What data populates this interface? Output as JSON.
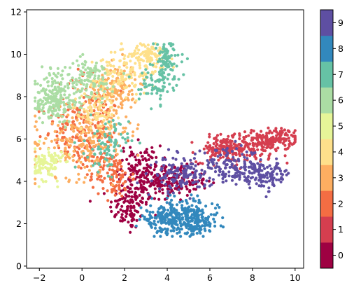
{
  "chart_data": {
    "type": "scatter",
    "title": "",
    "xlabel": "",
    "ylabel": "",
    "xlim": [
      -2.6,
      10.4
    ],
    "ylim": [
      -0.1,
      12.1
    ],
    "x_ticks": [
      -2,
      0,
      2,
      4,
      6,
      8,
      10
    ],
    "y_ticks": [
      0,
      2,
      4,
      6,
      8,
      10,
      12
    ],
    "grid": false,
    "legend": "none",
    "colormap": "Spectral (discrete, 10 classes)",
    "colorbar": {
      "placement": "right",
      "labels": [
        "0",
        "1",
        "2",
        "3",
        "4",
        "5",
        "6",
        "7",
        "8",
        "9"
      ],
      "colors": [
        "#9e0142",
        "#d53e4f",
        "#f46d43",
        "#fdae61",
        "#fee08b",
        "#e6f598",
        "#abdda4",
        "#66c2a5",
        "#3288bd",
        "#5e4fa2"
      ]
    },
    "clusters": [
      {
        "label": "0",
        "color": "#9e0142",
        "n": 420,
        "blobs": [
          [
            2.2,
            2.8,
            0.45,
            0.55
          ],
          [
            3.5,
            3.9,
            0.8,
            0.55
          ],
          [
            4.5,
            4.0,
            0.7,
            0.35
          ],
          [
            2.7,
            4.7,
            0.5,
            0.5
          ]
        ]
      },
      {
        "label": "1",
        "color": "#d53e4f",
        "n": 380,
        "blobs": [
          [
            8.0,
            5.6,
            0.9,
            0.35
          ],
          [
            9.0,
            6.0,
            0.5,
            0.25
          ],
          [
            6.6,
            5.5,
            0.6,
            0.3
          ]
        ]
      },
      {
        "label": "2",
        "color": "#f46d43",
        "n": 360,
        "blobs": [
          [
            0.5,
            7.7,
            0.6,
            0.9
          ],
          [
            1.5,
            4.2,
            0.4,
            0.5
          ],
          [
            -0.6,
            6.5,
            0.6,
            0.7
          ],
          [
            0.8,
            5.5,
            0.6,
            0.6
          ]
        ]
      },
      {
        "label": "3",
        "color": "#fdae61",
        "n": 360,
        "blobs": [
          [
            -0.5,
            5.8,
            0.9,
            0.8
          ],
          [
            0.8,
            6.5,
            0.8,
            1.0
          ],
          [
            1.6,
            8.4,
            0.5,
            0.6
          ]
        ]
      },
      {
        "label": "4",
        "color": "#fee08b",
        "n": 320,
        "blobs": [
          [
            1.5,
            8.8,
            0.7,
            0.6
          ],
          [
            2.5,
            9.4,
            0.7,
            0.5
          ],
          [
            3.2,
            10.0,
            0.4,
            0.25
          ],
          [
            0.6,
            7.3,
            0.5,
            0.5
          ]
        ]
      },
      {
        "label": "5",
        "color": "#e6f598",
        "n": 110,
        "blobs": [
          [
            -1.6,
            4.8,
            0.35,
            0.4
          ]
        ]
      },
      {
        "label": "6",
        "color": "#abdda4",
        "n": 320,
        "blobs": [
          [
            -1.1,
            8.4,
            0.6,
            0.55
          ],
          [
            0.3,
            8.8,
            0.6,
            0.5
          ],
          [
            -1.3,
            7.6,
            0.45,
            0.4
          ]
        ]
      },
      {
        "label": "7",
        "color": "#66c2a5",
        "n": 240,
        "blobs": [
          [
            3.5,
            8.7,
            0.4,
            0.5
          ],
          [
            4.0,
            9.7,
            0.3,
            0.5
          ],
          [
            1.2,
            5.7,
            0.5,
            0.6
          ]
        ]
      },
      {
        "label": "8",
        "color": "#3288bd",
        "n": 400,
        "blobs": [
          [
            4.7,
            2.4,
            0.7,
            0.45
          ],
          [
            5.4,
            2.1,
            0.5,
            0.35
          ],
          [
            3.8,
            2.2,
            0.5,
            0.3
          ]
        ]
      },
      {
        "label": "9",
        "color": "#5e4fa2",
        "n": 380,
        "blobs": [
          [
            6.9,
            4.7,
            0.8,
            0.4
          ],
          [
            8.5,
            4.3,
            0.7,
            0.3
          ],
          [
            4.6,
            4.3,
            0.6,
            0.4
          ]
        ]
      }
    ]
  }
}
